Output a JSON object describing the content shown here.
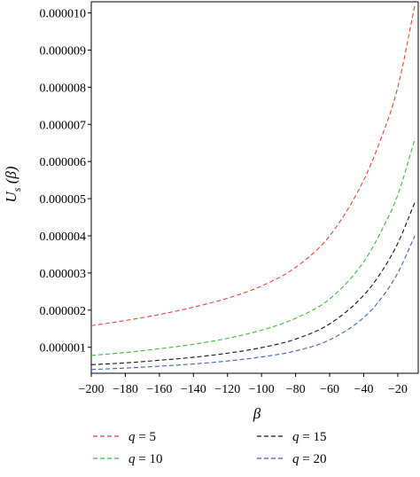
{
  "chart_data": {
    "type": "line",
    "title": "",
    "xlabel": "β",
    "ylabel_main": "U",
    "ylabel_sub": "s",
    "ylabel_paren": " (β)",
    "xlim": [
      -200,
      -8
    ],
    "ylim": [
      3e-07,
      1.03e-05
    ],
    "xticks": [
      -200,
      -180,
      -160,
      -140,
      -120,
      -100,
      -80,
      -60,
      -40,
      -20
    ],
    "xtick_labels": [
      "−200",
      "−180",
      "−160",
      "−140",
      "−120",
      "−100",
      "−80",
      "−60",
      "−40",
      "−20"
    ],
    "yticks": [
      1e-06,
      2e-06,
      3e-06,
      4e-06,
      5e-06,
      6e-06,
      7e-06,
      8e-06,
      9e-06,
      1e-05
    ],
    "ytick_labels": [
      "0.000001",
      "0.000002",
      "0.000003",
      "0.000004",
      "0.000005",
      "0.000006",
      "0.000007",
      "0.000008",
      "0.000009",
      "0.000010"
    ],
    "grid": false,
    "legend_position": "bottom",
    "series": [
      {
        "name": "q = 5",
        "legend_var": "q",
        "legend_rest": " = 5",
        "color": "#e8413a",
        "points": [
          [
            -200,
            1.58e-06
          ],
          [
            -180,
            1.72e-06
          ],
          [
            -160,
            1.88e-06
          ],
          [
            -140,
            2.08e-06
          ],
          [
            -120,
            2.32e-06
          ],
          [
            -100,
            2.65e-06
          ],
          [
            -80,
            3.15e-06
          ],
          [
            -60,
            4e-06
          ],
          [
            -40,
            5.5e-06
          ],
          [
            -30,
            6.6e-06
          ],
          [
            -20,
            8e-06
          ],
          [
            -10,
            1.02e-05
          ]
        ]
      },
      {
        "name": "q = 10",
        "legend_var": "q",
        "legend_rest": " = 10",
        "color": "#3ab83a",
        "points": [
          [
            -200,
            7.8e-07
          ],
          [
            -180,
            8.6e-07
          ],
          [
            -160,
            9.6e-07
          ],
          [
            -140,
            1.08e-06
          ],
          [
            -120,
            1.24e-06
          ],
          [
            -100,
            1.46e-06
          ],
          [
            -80,
            1.78e-06
          ],
          [
            -60,
            2.3e-06
          ],
          [
            -40,
            3.3e-06
          ],
          [
            -30,
            4.1e-06
          ],
          [
            -20,
            5.1e-06
          ],
          [
            -10,
            6.6e-06
          ]
        ]
      },
      {
        "name": "q = 15",
        "legend_var": "q",
        "legend_rest": " = 15",
        "color": "#111111",
        "points": [
          [
            -200,
            5.3e-07
          ],
          [
            -180,
            5.8e-07
          ],
          [
            -160,
            6.5e-07
          ],
          [
            -140,
            7.3e-07
          ],
          [
            -120,
            8.4e-07
          ],
          [
            -100,
            9.9e-07
          ],
          [
            -80,
            1.22e-06
          ],
          [
            -60,
            1.63e-06
          ],
          [
            -40,
            2.4e-06
          ],
          [
            -30,
            3e-06
          ],
          [
            -20,
            3.8e-06
          ],
          [
            -10,
            4.9e-06
          ]
        ]
      },
      {
        "name": "q = 20",
        "legend_var": "q",
        "legend_rest": " = 20",
        "color": "#3a5fb0",
        "points": [
          [
            -200,
            4e-07
          ],
          [
            -180,
            4.4e-07
          ],
          [
            -160,
            4.9e-07
          ],
          [
            -140,
            5.5e-07
          ],
          [
            -120,
            6.3e-07
          ],
          [
            -100,
            7.4e-07
          ],
          [
            -80,
            9e-07
          ],
          [
            -60,
            1.2e-06
          ],
          [
            -40,
            1.8e-06
          ],
          [
            -30,
            2.3e-06
          ],
          [
            -20,
            3e-06
          ],
          [
            -10,
            4e-06
          ]
        ]
      }
    ]
  }
}
